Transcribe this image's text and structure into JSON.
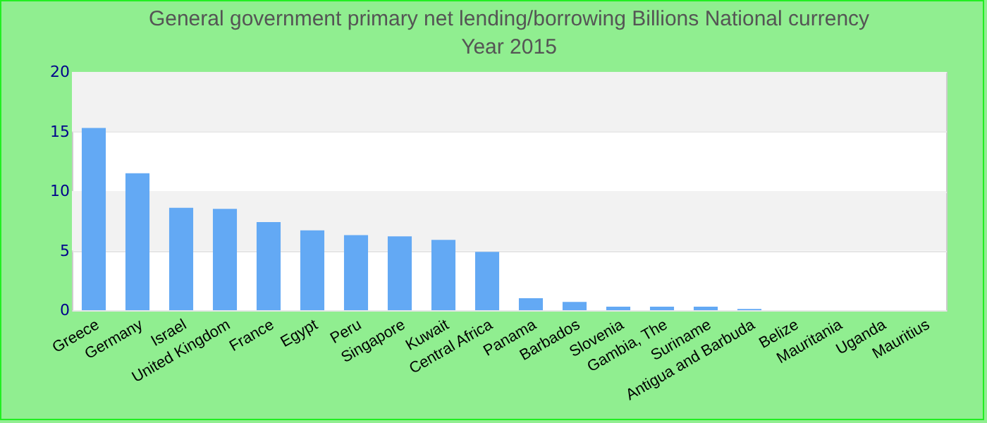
{
  "chart_data": {
    "type": "bar",
    "title": "General government primary net lending/borrowing Billions National currency",
    "subtitle": "Year 2015",
    "categories": [
      "Greece",
      "Germany",
      "Israel",
      "United Kingdom",
      "France",
      "Egypt",
      "Peru",
      "Singapore",
      "Kuwait",
      "Central Africa",
      "Panama",
      "Barbados",
      "Slovenia",
      "Gambia, The",
      "Suriname",
      "Antigua and Barbuda",
      "Belize",
      "Mauritania",
      "Uganda",
      "Mauritius"
    ],
    "values": [
      15.3,
      11.5,
      8.6,
      8.5,
      7.4,
      6.7,
      6.3,
      6.2,
      5.9,
      4.9,
      1.0,
      0.7,
      0.3,
      0.3,
      0.3,
      0.1,
      0,
      0,
      0,
      0
    ],
    "color": "#63a9f4",
    "ylim": [
      0,
      20
    ],
    "yticks": [
      0,
      5,
      10,
      15,
      20
    ],
    "grid": true
  }
}
